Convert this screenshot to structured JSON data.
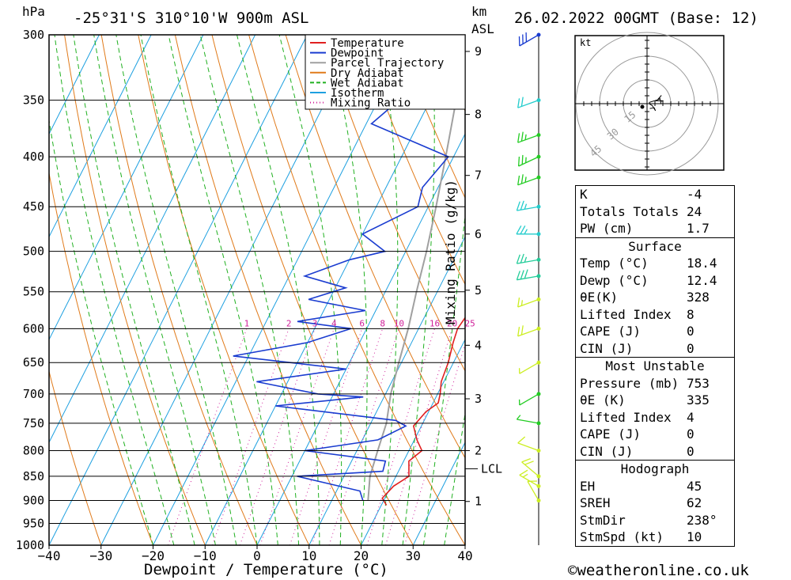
{
  "header": {
    "pressure_unit": "hPa",
    "location": "-25°31'S 310°10'W 900m ASL",
    "km_label": "km",
    "asl_label": "ASL",
    "datetime": "26.02.2022 00GMT (Base: 12)"
  },
  "chart_data": {
    "type": "skew-t",
    "xlabel": "Dewpoint / Temperature (°C)",
    "ylabel_right": "Mixing Ratio (g/kg)",
    "x_ticks": [
      -40,
      -30,
      -20,
      -10,
      0,
      10,
      20,
      30,
      40
    ],
    "pressure_levels": [
      300,
      350,
      400,
      450,
      500,
      550,
      600,
      650,
      700,
      750,
      800,
      850,
      900,
      950,
      1000
    ],
    "height_km_ticks": [
      1,
      2,
      3,
      4,
      5,
      6,
      7,
      8,
      9
    ],
    "lcl_label": "LCL",
    "mixing_ratio_labels": [
      "1",
      "2",
      "3",
      "4",
      "6",
      "8",
      "10",
      "16",
      "20",
      "25"
    ],
    "legend": [
      {
        "name": "Temperature",
        "color": "#e02020"
      },
      {
        "name": "Dewpoint",
        "color": "#1a3cd0"
      },
      {
        "name": "Parcel Trajectory",
        "color": "#a0a0a0"
      },
      {
        "name": "Dry Adiabat",
        "color": "#e07a1a"
      },
      {
        "name": "Wet Adiabat",
        "color": "#20b020"
      },
      {
        "name": "Isotherm",
        "color": "#1ea0e0"
      },
      {
        "name": "Mixing Ratio",
        "color": "#d0209a"
      }
    ],
    "temperature_profile": [
      [
        910,
        21
      ],
      [
        895,
        19.5
      ],
      [
        870,
        20.5
      ],
      [
        850,
        22.5
      ],
      [
        820,
        21
      ],
      [
        800,
        22.5
      ],
      [
        780,
        20.5
      ],
      [
        755,
        18.5
      ],
      [
        730,
        19.5
      ],
      [
        715,
        21
      ],
      [
        700,
        20.5
      ],
      [
        680,
        19.5
      ],
      [
        650,
        19
      ],
      [
        620,
        18
      ],
      [
        600,
        17.5
      ],
      [
        580,
        18
      ],
      [
        560,
        18.5
      ],
      [
        550,
        18
      ],
      [
        530,
        19
      ],
      [
        510,
        19.5
      ],
      [
        500,
        19.5
      ],
      [
        470,
        19
      ],
      [
        450,
        17.5
      ],
      [
        425,
        17
      ],
      [
        400,
        16.5
      ],
      [
        375,
        15.5
      ],
      [
        360,
        15
      ],
      [
        345,
        13.5
      ],
      [
        325,
        11
      ],
      [
        310,
        9
      ],
      [
        300,
        8
      ]
    ],
    "dewpoint_profile": [
      [
        900,
        16
      ],
      [
        880,
        14.5
      ],
      [
        850,
        1
      ],
      [
        840,
        17
      ],
      [
        820,
        16.5
      ],
      [
        800,
        0
      ],
      [
        780,
        13
      ],
      [
        755,
        17
      ],
      [
        745,
        14.5
      ],
      [
        720,
        -10
      ],
      [
        705,
        6
      ],
      [
        700,
        -3
      ],
      [
        680,
        -16
      ],
      [
        660,
        0
      ],
      [
        640,
        -23
      ],
      [
        620,
        -10
      ],
      [
        600,
        -3
      ],
      [
        590,
        -14
      ],
      [
        575,
        -2
      ],
      [
        560,
        -14
      ],
      [
        545,
        -8
      ],
      [
        530,
        -17
      ],
      [
        510,
        -10
      ],
      [
        500,
        -4
      ],
      [
        480,
        -10
      ],
      [
        450,
        -2
      ],
      [
        430,
        -3
      ],
      [
        400,
        -1
      ],
      [
        370,
        -19
      ],
      [
        350,
        -16
      ],
      [
        320,
        0
      ],
      [
        310,
        -20
      ],
      [
        300,
        -20
      ]
    ],
    "parcel_profile": [
      [
        900,
        17
      ],
      [
        850,
        15
      ],
      [
        800,
        14
      ],
      [
        750,
        13
      ],
      [
        700,
        11
      ],
      [
        650,
        9.5
      ],
      [
        600,
        8
      ],
      [
        550,
        6
      ],
      [
        500,
        4
      ],
      [
        450,
        1.5
      ],
      [
        400,
        -1.5
      ],
      [
        350,
        -5
      ],
      [
        300,
        -9
      ]
    ],
    "wind_profile": [
      {
        "p": 900,
        "dir": 330,
        "spd": 10,
        "color": "#ccee22"
      },
      {
        "p": 870,
        "dir": 300,
        "spd": 15,
        "color": "#ccee22"
      },
      {
        "p": 850,
        "dir": 310,
        "spd": 20,
        "color": "#ccee22"
      },
      {
        "p": 800,
        "dir": 290,
        "spd": 10,
        "color": "#ccee22"
      },
      {
        "p": 750,
        "dir": 280,
        "spd": 5,
        "color": "#22cc22"
      },
      {
        "p": 700,
        "dir": 240,
        "spd": 5,
        "color": "#22cc22"
      },
      {
        "p": 650,
        "dir": 240,
        "spd": 5,
        "color": "#ccee22"
      },
      {
        "p": 600,
        "dir": 250,
        "spd": 20,
        "color": "#ccee22"
      },
      {
        "p": 560,
        "dir": 250,
        "spd": 15,
        "color": "#ccee22"
      },
      {
        "p": 530,
        "dir": 260,
        "spd": 30,
        "color": "#22cc99"
      },
      {
        "p": 510,
        "dir": 260,
        "spd": 25,
        "color": "#22cc99"
      },
      {
        "p": 480,
        "dir": 270,
        "spd": 25,
        "color": "#22cccc"
      },
      {
        "p": 450,
        "dir": 260,
        "spd": 25,
        "color": "#22cccc"
      },
      {
        "p": 420,
        "dir": 250,
        "spd": 25,
        "color": "#22cc22"
      },
      {
        "p": 400,
        "dir": 245,
        "spd": 25,
        "color": "#22cc22"
      },
      {
        "p": 380,
        "dir": 250,
        "spd": 25,
        "color": "#22cc22"
      },
      {
        "p": 350,
        "dir": 250,
        "spd": 20,
        "color": "#22cccc"
      },
      {
        "p": 300,
        "dir": 240,
        "spd": 30,
        "color": "#1a3cd0"
      }
    ]
  },
  "hodograph": {
    "unit": "kt",
    "ring_labels": [
      "15",
      "30",
      "45"
    ]
  },
  "indices": {
    "general": [
      {
        "label": "K",
        "value": "-4"
      },
      {
        "label": "Totals Totals",
        "value": "24"
      },
      {
        "label": "PW (cm)",
        "value": "1.7"
      }
    ],
    "surface_title": "Surface",
    "surface": [
      {
        "label": "Temp (°C)",
        "value": "18.4"
      },
      {
        "label": "Dewp (°C)",
        "value": "12.4"
      },
      {
        "label": "θE(K)",
        "value": "328"
      },
      {
        "label": "Lifted Index",
        "value": "8"
      },
      {
        "label": "CAPE (J)",
        "value": "0"
      },
      {
        "label": "CIN (J)",
        "value": "0"
      }
    ],
    "unstable_title": "Most Unstable",
    "unstable": [
      {
        "label": "Pressure (mb)",
        "value": "753"
      },
      {
        "label": "θE (K)",
        "value": "335"
      },
      {
        "label": "Lifted Index",
        "value": "4"
      },
      {
        "label": "CAPE (J)",
        "value": "0"
      },
      {
        "label": "CIN (J)",
        "value": "0"
      }
    ],
    "hodo_title": "Hodograph",
    "hodo": [
      {
        "label": "EH",
        "value": "45"
      },
      {
        "label": "SREH",
        "value": "62"
      },
      {
        "label": "StmDir",
        "value": "238°"
      },
      {
        "label": "StmSpd (kt)",
        "value": "10"
      }
    ]
  },
  "footer": {
    "copyright": "©weatheronline.co.uk"
  }
}
